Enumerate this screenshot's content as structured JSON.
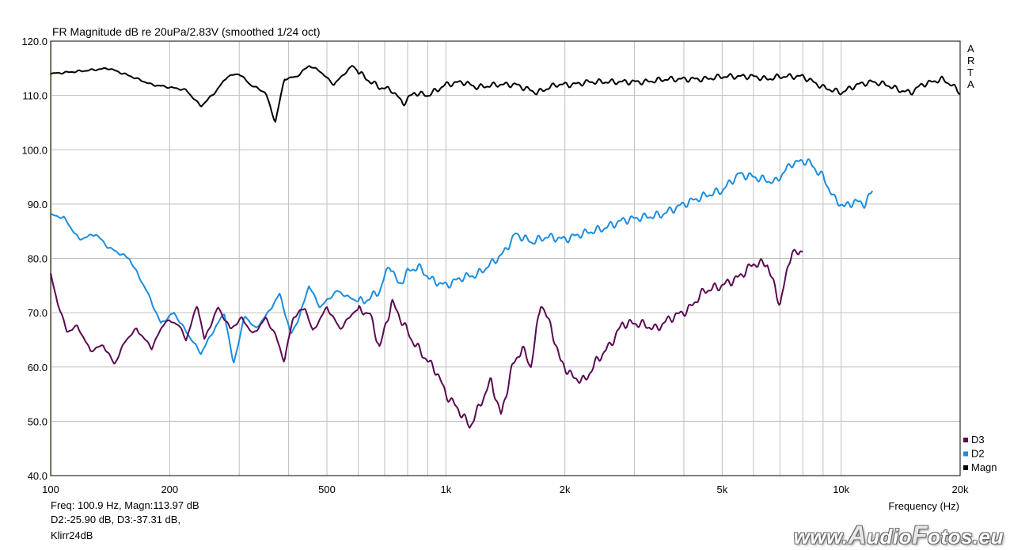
{
  "title": "FR Magnitude dB re 20uPa/2.83V (smoothed 1/24 oct)",
  "brand": [
    "A",
    "R",
    "T",
    "A"
  ],
  "status": {
    "line1": "Freq: 100.9 Hz, Magn:113.97 dB",
    "line2": "D2:-25.90 dB, D3:-37.31 dB,",
    "line3": "Klirr24dB"
  },
  "watermark": {
    "prefix": "www.",
    "a": "A",
    "mid": "udio",
    "f": "F",
    "suffix": "otos.eu"
  },
  "colors": {
    "magn": "#000000",
    "d2": "#1a8de0",
    "d3": "#5a0a52",
    "grid": "#bfbfbf",
    "frame": "#000000"
  },
  "chart_data": {
    "type": "line",
    "title": "FR Magnitude dB re 20uPa/2.83V (smoothed 1/24 oct)",
    "xlabel": "Frequency (Hz)",
    "ylabel": "",
    "xscale": "log",
    "xlim": [
      100,
      20000
    ],
    "ylim": [
      40,
      120
    ],
    "x_ticks": [
      {
        "v": 100,
        "t": "100"
      },
      {
        "v": 200,
        "t": "200"
      },
      {
        "v": 500,
        "t": "500"
      },
      {
        "v": 1000,
        "t": "1k"
      },
      {
        "v": 2000,
        "t": "2k"
      },
      {
        "v": 5000,
        "t": "5k"
      },
      {
        "v": 10000,
        "t": "10k"
      },
      {
        "v": 20000,
        "t": "20k"
      }
    ],
    "y_ticks": [
      {
        "v": 40,
        "t": "40.0"
      },
      {
        "v": 50,
        "t": "50.0"
      },
      {
        "v": 60,
        "t": "60.0"
      },
      {
        "v": 70,
        "t": "70.0"
      },
      {
        "v": 80,
        "t": "80.0"
      },
      {
        "v": 90,
        "t": "90.0"
      },
      {
        "v": 100,
        "t": "100.0"
      },
      {
        "v": 110,
        "t": "110.0"
      },
      {
        "v": 120,
        "t": "120.0"
      }
    ],
    "grid": true,
    "legend_position": "bottom-right",
    "series": [
      {
        "name": "D3",
        "color": "#5a0a52",
        "points": [
          [
            100,
            77
          ],
          [
            104,
            72
          ],
          [
            110,
            66.5
          ],
          [
            117,
            67.5
          ],
          [
            126,
            63
          ],
          [
            136,
            64
          ],
          [
            145,
            60.5
          ],
          [
            155,
            65
          ],
          [
            165,
            67
          ],
          [
            180,
            63.5
          ],
          [
            195,
            68.5
          ],
          [
            210,
            68
          ],
          [
            220,
            65
          ],
          [
            235,
            71.5
          ],
          [
            245,
            65
          ],
          [
            265,
            71
          ],
          [
            285,
            67
          ],
          [
            305,
            69
          ],
          [
            325,
            66
          ],
          [
            350,
            69
          ],
          [
            370,
            66
          ],
          [
            390,
            61
          ],
          [
            410,
            69
          ],
          [
            440,
            71
          ],
          [
            460,
            66.5
          ],
          [
            500,
            71
          ],
          [
            540,
            67
          ],
          [
            590,
            70.5
          ],
          [
            640,
            70
          ],
          [
            680,
            63.5
          ],
          [
            730,
            72
          ],
          [
            780,
            68
          ],
          [
            820,
            65
          ],
          [
            880,
            62
          ],
          [
            950,
            59
          ],
          [
            1000,
            55
          ],
          [
            1080,
            52
          ],
          [
            1150,
            49
          ],
          [
            1220,
            53
          ],
          [
            1300,
            57.5
          ],
          [
            1380,
            51
          ],
          [
            1470,
            60
          ],
          [
            1560,
            63.5
          ],
          [
            1640,
            60
          ],
          [
            1740,
            72
          ],
          [
            1850,
            67
          ],
          [
            1950,
            61
          ],
          [
            2100,
            58
          ],
          [
            2250,
            57.5
          ],
          [
            2400,
            61
          ],
          [
            2600,
            64
          ],
          [
            2800,
            68
          ],
          [
            3100,
            68
          ],
          [
            3400,
            67
          ],
          [
            3700,
            69
          ],
          [
            4100,
            70.5
          ],
          [
            4500,
            74
          ],
          [
            5000,
            75
          ],
          [
            5500,
            76.5
          ],
          [
            6000,
            79
          ],
          [
            6500,
            79
          ],
          [
            7000,
            71.5
          ],
          [
            7500,
            81.5
          ],
          [
            7800,
            80.5
          ],
          [
            8000,
            82
          ]
        ]
      },
      {
        "name": "D2",
        "color": "#1a8de0",
        "points": [
          [
            100,
            88
          ],
          [
            108,
            87.5
          ],
          [
            118,
            83.5
          ],
          [
            130,
            84.5
          ],
          [
            140,
            82
          ],
          [
            158,
            80
          ],
          [
            175,
            74
          ],
          [
            190,
            68
          ],
          [
            205,
            70
          ],
          [
            225,
            65.5
          ],
          [
            240,
            62.5
          ],
          [
            255,
            66
          ],
          [
            275,
            70
          ],
          [
            290,
            60.5
          ],
          [
            310,
            69.5
          ],
          [
            330,
            67
          ],
          [
            355,
            70
          ],
          [
            380,
            73.5
          ],
          [
            405,
            66
          ],
          [
            425,
            69
          ],
          [
            450,
            75
          ],
          [
            480,
            71
          ],
          [
            530,
            74
          ],
          [
            580,
            72.5
          ],
          [
            620,
            72
          ],
          [
            680,
            74
          ],
          [
            720,
            79
          ],
          [
            760,
            75
          ],
          [
            800,
            77.5
          ],
          [
            850,
            78.5
          ],
          [
            920,
            76
          ],
          [
            1000,
            75
          ],
          [
            1100,
            76.5
          ],
          [
            1200,
            77
          ],
          [
            1300,
            79
          ],
          [
            1400,
            81
          ],
          [
            1500,
            84.5
          ],
          [
            1650,
            83
          ],
          [
            1800,
            84
          ],
          [
            2000,
            83.5
          ],
          [
            2200,
            84.5
          ],
          [
            2500,
            85.5
          ],
          [
            2800,
            87
          ],
          [
            3100,
            87.5
          ],
          [
            3500,
            88
          ],
          [
            4000,
            90
          ],
          [
            4500,
            91.5
          ],
          [
            5000,
            92.5
          ],
          [
            5500,
            95.5
          ],
          [
            6000,
            95
          ],
          [
            6800,
            94
          ],
          [
            7500,
            97.5
          ],
          [
            8200,
            98
          ],
          [
            9000,
            95
          ],
          [
            9600,
            91
          ],
          [
            10200,
            89.5
          ],
          [
            10800,
            90.5
          ],
          [
            11500,
            90
          ],
          [
            12000,
            92.5
          ]
        ]
      },
      {
        "name": "Magn",
        "color": "#000000",
        "points": [
          [
            100,
            114
          ],
          [
            120,
            114.5
          ],
          [
            140,
            115
          ],
          [
            160,
            113.5
          ],
          [
            180,
            112
          ],
          [
            200,
            111.5
          ],
          [
            220,
            111
          ],
          [
            240,
            108
          ],
          [
            260,
            110.5
          ],
          [
            280,
            113.5
          ],
          [
            300,
            114
          ],
          [
            320,
            112
          ],
          [
            350,
            110.5
          ],
          [
            370,
            105
          ],
          [
            390,
            113
          ],
          [
            420,
            113.5
          ],
          [
            450,
            115.5
          ],
          [
            480,
            114.5
          ],
          [
            520,
            112
          ],
          [
            580,
            115.5
          ],
          [
            630,
            113
          ],
          [
            680,
            111.5
          ],
          [
            730,
            111
          ],
          [
            780,
            108.5
          ],
          [
            830,
            110.5
          ],
          [
            900,
            110
          ],
          [
            1000,
            112
          ],
          [
            1100,
            112.5
          ],
          [
            1200,
            111.5
          ],
          [
            1350,
            112
          ],
          [
            1500,
            112
          ],
          [
            1700,
            110.5
          ],
          [
            1900,
            112
          ],
          [
            2100,
            112
          ],
          [
            2300,
            112.5
          ],
          [
            2600,
            112.5
          ],
          [
            2900,
            112.5
          ],
          [
            3200,
            112.5
          ],
          [
            3600,
            113
          ],
          [
            4000,
            113
          ],
          [
            4500,
            113
          ],
          [
            5000,
            113.5
          ],
          [
            5500,
            113.5
          ],
          [
            6000,
            113.5
          ],
          [
            6500,
            113
          ],
          [
            7000,
            113.5
          ],
          [
            7500,
            113.5
          ],
          [
            8000,
            113.5
          ],
          [
            9000,
            111.5
          ],
          [
            10000,
            110.5
          ],
          [
            11000,
            112
          ],
          [
            12000,
            112.5
          ],
          [
            13000,
            112
          ],
          [
            14000,
            111
          ],
          [
            15000,
            110.5
          ],
          [
            16000,
            112
          ],
          [
            17000,
            112.5
          ],
          [
            18000,
            113
          ],
          [
            19000,
            112
          ],
          [
            20000,
            110.5
          ]
        ]
      }
    ]
  }
}
